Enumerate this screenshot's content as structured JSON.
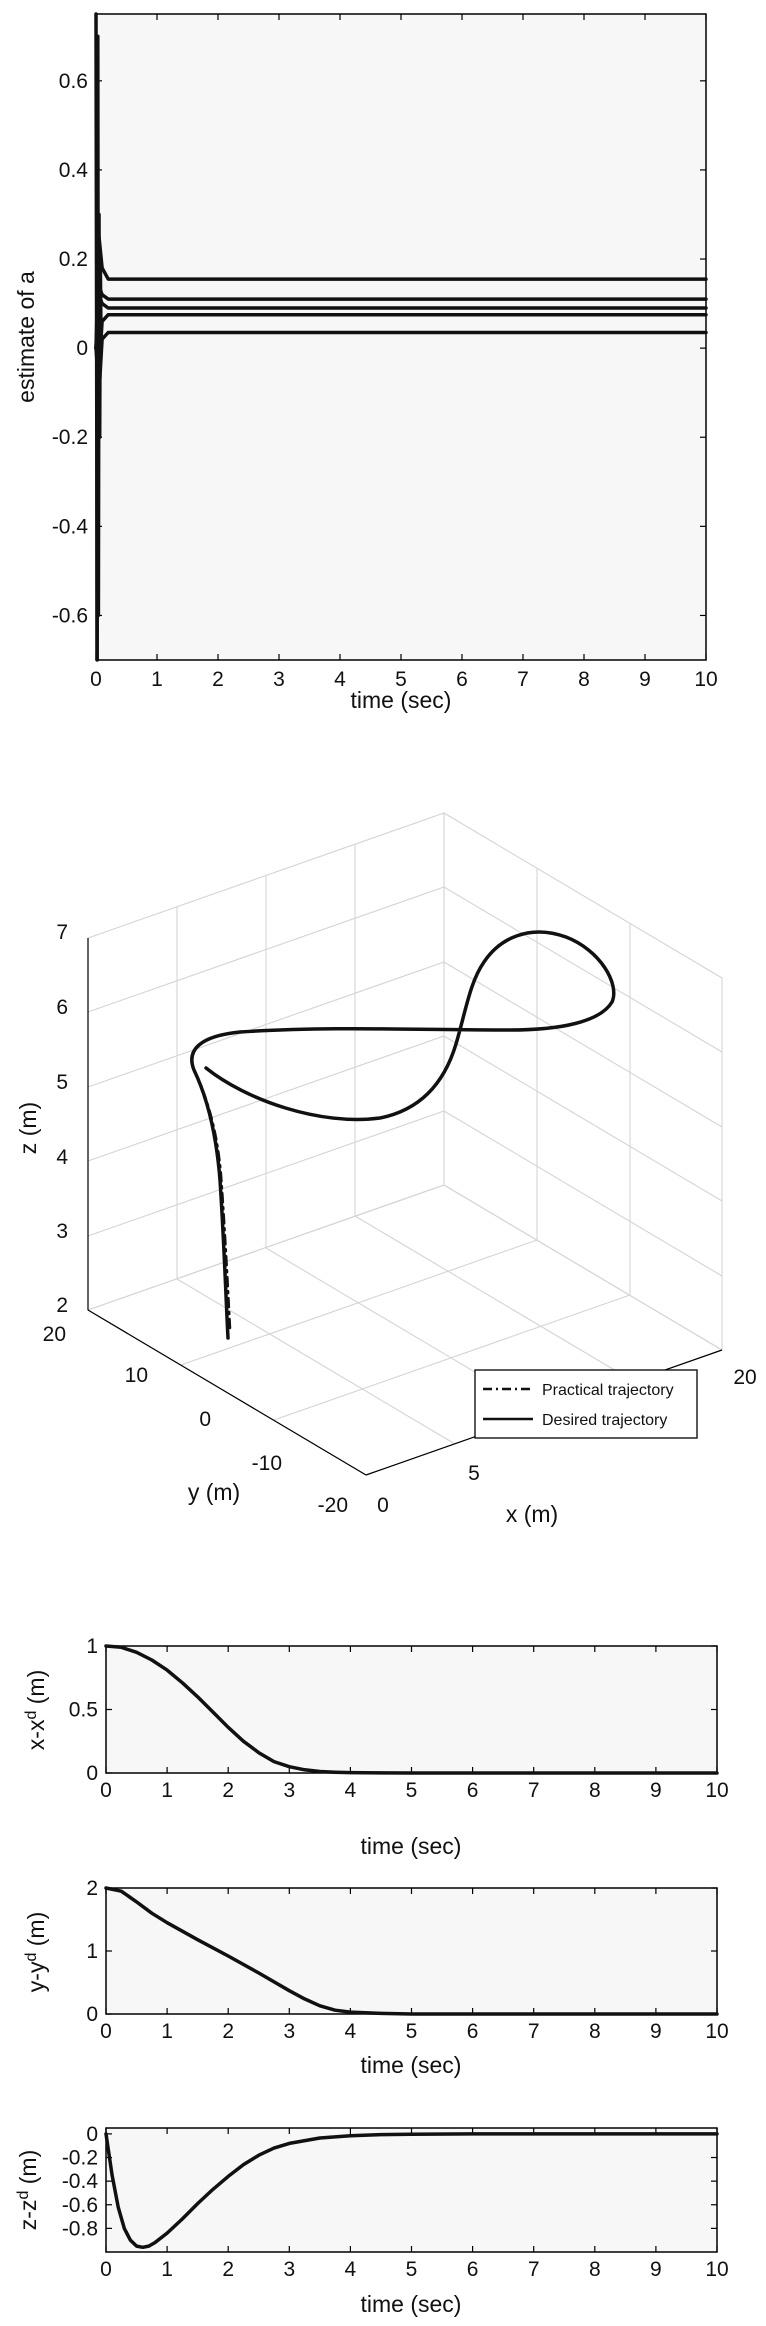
{
  "chart_data": [
    {
      "type": "line",
      "xlabel": "time (sec)",
      "ylabel": "estimate of a",
      "xlim": [
        0,
        10
      ],
      "ylim": [
        -0.7,
        0.75
      ],
      "xticks": [
        "0",
        "1",
        "2",
        "3",
        "4",
        "5",
        "6",
        "7",
        "8",
        "9",
        "10"
      ],
      "yticks": [
        "-0.6",
        "-0.4",
        "-0.2",
        "0",
        "0.2",
        "0.4",
        "0.6"
      ],
      "series": [
        {
          "x": [
            0,
            0.05,
            0.1,
            0.2,
            10
          ],
          "y": [
            0,
            0.25,
            0.18,
            0.155,
            0.155
          ]
        },
        {
          "x": [
            0,
            0.05,
            0.1,
            0.2,
            10
          ],
          "y": [
            0,
            0.14,
            0.12,
            0.11,
            0.11
          ]
        },
        {
          "x": [
            0,
            0.05,
            0.1,
            0.2,
            10
          ],
          "y": [
            0,
            0.12,
            0.1,
            0.09,
            0.09
          ]
        },
        {
          "x": [
            0,
            0.05,
            0.1,
            0.2,
            10
          ],
          "y": [
            0,
            -0.05,
            0.06,
            0.075,
            0.075
          ]
        },
        {
          "x": [
            0,
            0.05,
            0.1,
            0.2,
            10
          ],
          "y": [
            0,
            -0.1,
            0.02,
            0.035,
            0.035
          ]
        }
      ]
    },
    {
      "type": "line",
      "xlabel": "x (m)",
      "ylabel": "y (m)",
      "zlabel": "z (m)",
      "xticks": [
        "0",
        "5",
        "20"
      ],
      "yticks": [
        "-20",
        "-10",
        "0",
        "10",
        "20"
      ],
      "zticks": [
        "2",
        "3",
        "4",
        "5",
        "6",
        "7"
      ],
      "grid": true,
      "legend": {
        "position": "bottom-right",
        "entries": [
          "Practical trajectory",
          "Desired trajectory"
        ]
      }
    },
    {
      "type": "line",
      "xlabel": "time (sec)",
      "ylabel": "x-x",
      "ylabel_sup": "d",
      "ylabel_suffix": " (m)",
      "xlim": [
        0,
        10
      ],
      "ylim": [
        0,
        1
      ],
      "xticks": [
        "0",
        "1",
        "2",
        "3",
        "4",
        "5",
        "6",
        "7",
        "8",
        "9",
        "10"
      ],
      "yticks": [
        "0",
        "0.5",
        "1"
      ],
      "x": [
        0,
        0.25,
        0.5,
        0.75,
        1,
        1.25,
        1.5,
        1.75,
        2,
        2.25,
        2.5,
        2.75,
        3,
        3.25,
        3.5,
        3.75,
        4,
        4.5,
        5,
        6,
        7,
        8,
        9,
        10
      ],
      "y": [
        1,
        0.99,
        0.95,
        0.89,
        0.81,
        0.71,
        0.6,
        0.48,
        0.36,
        0.25,
        0.16,
        0.09,
        0.05,
        0.025,
        0.012,
        0.006,
        0.003,
        0.001,
        0,
        0,
        0,
        0,
        0,
        0
      ]
    },
    {
      "type": "line",
      "xlabel": "time (sec)",
      "ylabel": "y-y",
      "ylabel_sup": "d",
      "ylabel_suffix": " (m)",
      "xlim": [
        0,
        10
      ],
      "ylim": [
        0,
        2
      ],
      "xticks": [
        "0",
        "1",
        "2",
        "3",
        "4",
        "5",
        "6",
        "7",
        "8",
        "9",
        "10"
      ],
      "yticks": [
        "0",
        "1",
        "2"
      ],
      "x": [
        0,
        0.25,
        0.5,
        0.75,
        1,
        1.5,
        2,
        2.5,
        3,
        3.25,
        3.5,
        3.75,
        4,
        4.5,
        5,
        6,
        7,
        8,
        9,
        10
      ],
      "y": [
        2,
        1.95,
        1.78,
        1.6,
        1.45,
        1.18,
        0.92,
        0.65,
        0.37,
        0.24,
        0.13,
        0.06,
        0.03,
        0.01,
        0,
        0,
        0,
        0,
        0,
        0
      ]
    },
    {
      "type": "line",
      "xlabel": "time (sec)",
      "ylabel": "z-z",
      "ylabel_sup": "d",
      "ylabel_suffix": " (m)",
      "xlim": [
        0,
        10
      ],
      "ylim": [
        -1,
        0.05
      ],
      "xticks": [
        "0",
        "1",
        "2",
        "3",
        "4",
        "5",
        "6",
        "7",
        "8",
        "9",
        "10"
      ],
      "yticks": [
        "0",
        "-0.2",
        "-0.4",
        "-0.6",
        "-0.8"
      ],
      "x": [
        0,
        0.1,
        0.2,
        0.3,
        0.4,
        0.5,
        0.6,
        0.7,
        0.8,
        1,
        1.25,
        1.5,
        1.75,
        2,
        2.25,
        2.5,
        2.75,
        3,
        3.5,
        4,
        4.5,
        5,
        6,
        7,
        8,
        9,
        10
      ],
      "y": [
        0,
        -0.35,
        -0.62,
        -0.8,
        -0.9,
        -0.95,
        -0.96,
        -0.95,
        -0.92,
        -0.84,
        -0.72,
        -0.59,
        -0.47,
        -0.36,
        -0.26,
        -0.18,
        -0.12,
        -0.08,
        -0.035,
        -0.015,
        -0.006,
        -0.003,
        0,
        0,
        0,
        0,
        0
      ]
    }
  ]
}
